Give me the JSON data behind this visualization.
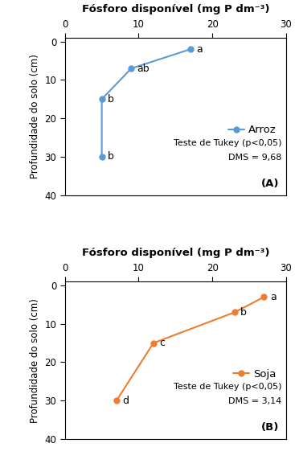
{
  "panel_A": {
    "x": [
      17.0,
      9.0,
      5.0,
      5.0
    ],
    "y": [
      2,
      7,
      15,
      30
    ],
    "labels": [
      "a",
      "ab",
      "b",
      "b"
    ],
    "color": "#5B9BD5",
    "name": "Arroz",
    "tukey_line1": "Teste de Tukey (p<0,05)",
    "tukey_line2": "DMS = 9,68",
    "panel_label": "(A)",
    "xlim": [
      0,
      30
    ],
    "ylim": [
      40,
      -1
    ],
    "xticks": [
      0,
      10,
      20,
      30
    ],
    "yticks": [
      0,
      10,
      20,
      30,
      40
    ],
    "xlabel": "Fósforo disponível (mg P dm⁻³)",
    "ylabel": "Profundidade do solo (cm)"
  },
  "panel_B": {
    "x": [
      27.0,
      23.0,
      12.0,
      7.0
    ],
    "y": [
      3,
      7,
      15,
      30
    ],
    "labels": [
      "a",
      "b",
      "c",
      "d"
    ],
    "color": "#ED7D31",
    "name": "Soja",
    "tukey_line1": "Teste de Tukey (p<0,05)",
    "tukey_line2": "DMS = 3,14",
    "panel_label": "(B)",
    "xlim": [
      0,
      30
    ],
    "ylim": [
      40,
      -1
    ],
    "xticks": [
      0,
      10,
      20,
      30
    ],
    "yticks": [
      0,
      10,
      20,
      30,
      40
    ],
    "xlabel": "Fósforo disponível (mg P dm⁻³)",
    "ylabel": "Profundidade do solo (cm)"
  },
  "background_color": "#ffffff",
  "title_fontsize": 9.5,
  "axis_fontsize": 8.5,
  "tick_fontsize": 8.5,
  "label_fontsize": 9,
  "legend_fontsize": 9.5,
  "annotation_fontsize": 8,
  "panel_label_fontsize": 9.5
}
